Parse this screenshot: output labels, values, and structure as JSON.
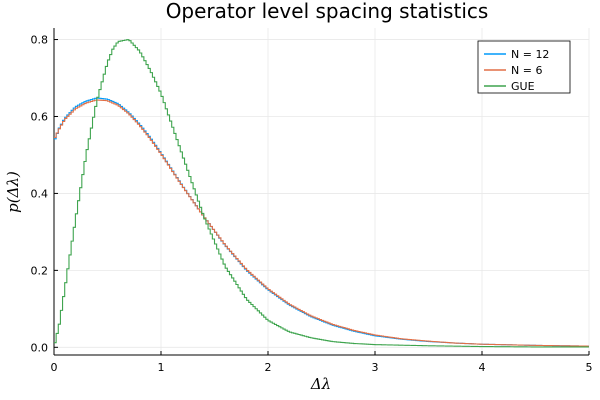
{
  "chart_data": {
    "type": "line",
    "title": "Operator level spacing statistics",
    "xlabel": "Δλ",
    "ylabel": "p(Δλ)",
    "xlim": [
      0,
      5
    ],
    "ylim": [
      -0.02,
      0.83
    ],
    "x_ticks": [
      0,
      1,
      2,
      3,
      4,
      5
    ],
    "x_tick_labels": [
      "0",
      "1",
      "2",
      "3",
      "4",
      "5"
    ],
    "y_ticks": [
      0.0,
      0.2,
      0.4,
      0.6,
      0.8
    ],
    "y_tick_labels": [
      "0.0",
      "0.2",
      "0.4",
      "0.6",
      "0.8"
    ],
    "grid": true,
    "legend_position": "top-right",
    "series": [
      {
        "name": "N = 12",
        "color": "#009AFA",
        "x": [
          0,
          0.05,
          0.1,
          0.2,
          0.3,
          0.4,
          0.5,
          0.6,
          0.7,
          0.8,
          0.9,
          1.0,
          1.2,
          1.4,
          1.6,
          1.8,
          2.0,
          2.2,
          2.4,
          2.6,
          2.8,
          3.0,
          3.25,
          3.5,
          3.75,
          4.0,
          4.5,
          5.0
        ],
        "y": [
          0.535,
          0.57,
          0.595,
          0.625,
          0.64,
          0.648,
          0.645,
          0.633,
          0.61,
          0.58,
          0.545,
          0.505,
          0.42,
          0.34,
          0.265,
          0.2,
          0.15,
          0.11,
          0.08,
          0.058,
          0.042,
          0.03,
          0.021,
          0.015,
          0.011,
          0.008,
          0.005,
          0.003
        ]
      },
      {
        "name": "N = 6",
        "color": "#E26F46",
        "x": [
          0,
          0.05,
          0.1,
          0.2,
          0.3,
          0.4,
          0.5,
          0.6,
          0.7,
          0.8,
          0.9,
          1.0,
          1.2,
          1.4,
          1.6,
          1.8,
          2.0,
          2.2,
          2.4,
          2.6,
          2.8,
          3.0,
          3.25,
          3.5,
          3.75,
          4.0,
          4.5,
          5.0
        ],
        "y": [
          0.54,
          0.568,
          0.592,
          0.62,
          0.635,
          0.643,
          0.641,
          0.629,
          0.607,
          0.577,
          0.542,
          0.503,
          0.419,
          0.34,
          0.266,
          0.202,
          0.152,
          0.112,
          0.082,
          0.06,
          0.044,
          0.032,
          0.022,
          0.016,
          0.011,
          0.008,
          0.005,
          0.003
        ]
      },
      {
        "name": "GUE",
        "color": "#3EA44E",
        "x": [
          0,
          0.05,
          0.1,
          0.15,
          0.2,
          0.3,
          0.4,
          0.5,
          0.55,
          0.6,
          0.7,
          0.8,
          0.9,
          1.0,
          1.2,
          1.4,
          1.6,
          1.8,
          2.0,
          2.2,
          2.4,
          2.6,
          2.8,
          3.0,
          3.5,
          4.0,
          4.5,
          5.0
        ],
        "y": [
          0.0,
          0.06,
          0.15,
          0.24,
          0.33,
          0.5,
          0.64,
          0.74,
          0.775,
          0.795,
          0.8,
          0.77,
          0.72,
          0.66,
          0.5,
          0.34,
          0.21,
          0.125,
          0.07,
          0.04,
          0.025,
          0.015,
          0.01,
          0.007,
          0.004,
          0.002,
          0.001,
          0.001
        ]
      }
    ]
  }
}
